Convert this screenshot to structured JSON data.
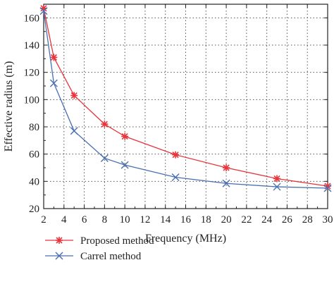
{
  "chart_data": {
    "type": "line",
    "xlabel": "Frequency (MHz)",
    "ylabel": "Effective radius (m)",
    "xlim": [
      2,
      30
    ],
    "ylim": [
      20,
      170
    ],
    "x_ticks": [
      2,
      4,
      6,
      8,
      10,
      12,
      14,
      16,
      18,
      20,
      22,
      24,
      26,
      28,
      30
    ],
    "y_ticks": [
      20,
      40,
      60,
      80,
      100,
      120,
      140,
      160
    ],
    "grid": true,
    "legend_position": "bottom-center",
    "series": [
      {
        "name": "Proposed method",
        "color": "#e8343a",
        "marker": "star",
        "x": [
          2,
          3,
          5,
          8,
          10,
          15,
          20,
          25,
          30
        ],
        "y": [
          167,
          131,
          103,
          82,
          73,
          59.5,
          50,
          42,
          36.5
        ]
      },
      {
        "name": "Carrel method",
        "color": "#4a6fb0",
        "marker": "x",
        "x": [
          2,
          3,
          5,
          8,
          10,
          15,
          20,
          25,
          30
        ],
        "y": [
          165,
          112,
          77,
          57,
          52,
          43,
          38.5,
          36,
          35
        ]
      }
    ]
  }
}
